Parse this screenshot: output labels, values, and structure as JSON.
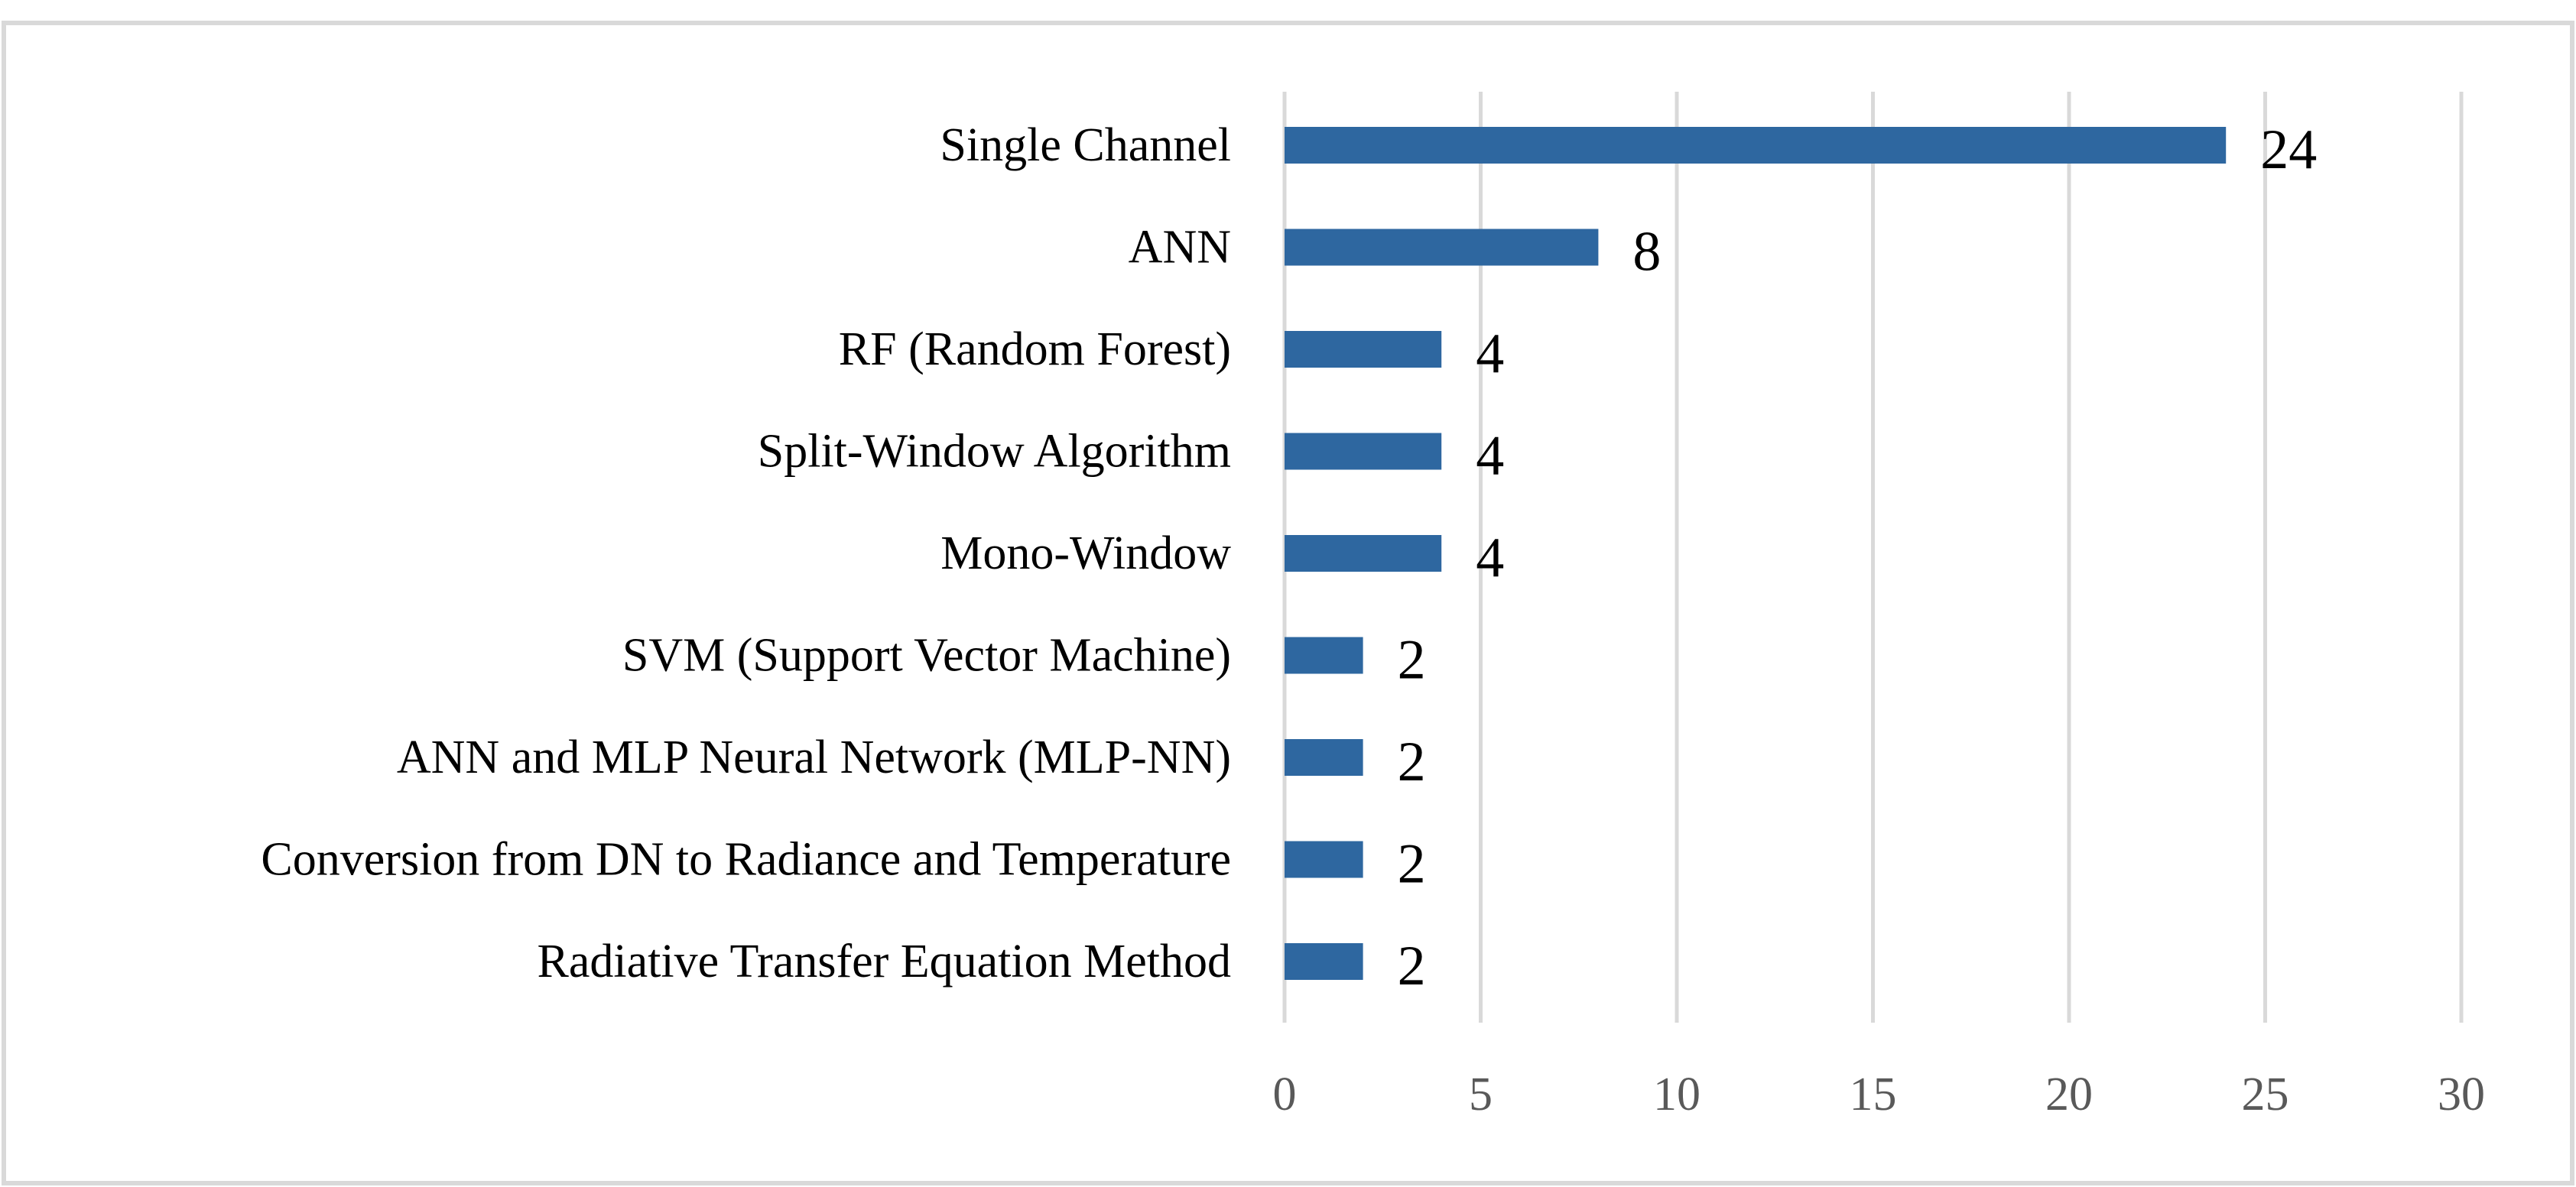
{
  "colors": {
    "bar": "#2e67a0",
    "grid": "#d9d9d9",
    "frame": "#d9d9d9",
    "tick_text": "#595959",
    "label_text": "#000000"
  },
  "chart_data": {
    "type": "bar",
    "orientation": "horizontal",
    "title": "",
    "xlabel": "",
    "ylabel": "",
    "categories": [
      "Single Channel",
      "ANN",
      "RF (Random Forest)",
      "Split-Window Algorithm",
      "Mono-Window",
      "SVM (Support Vector Machine)",
      "ANN and MLP Neural Network (MLP-NN)",
      "Conversion from DN to Radiance and Temperature",
      "Radiative Transfer Equation Method"
    ],
    "values": [
      24,
      8,
      4,
      4,
      4,
      2,
      2,
      2,
      2
    ],
    "data_labels": [
      "24",
      "8",
      "4",
      "4",
      "4",
      "2",
      "2",
      "2",
      "2"
    ],
    "xlim": [
      0,
      30
    ],
    "ticks": [
      "0",
      "5",
      "10",
      "15",
      "20",
      "25",
      "30"
    ],
    "tick_values": [
      0,
      5,
      10,
      15,
      20,
      25,
      30
    ],
    "grid": "vertical",
    "legend": "none"
  }
}
